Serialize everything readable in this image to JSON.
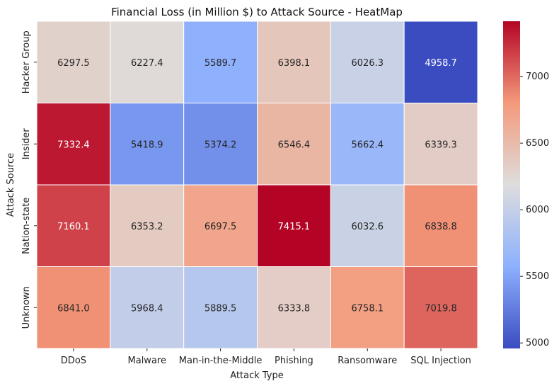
{
  "chart_data": {
    "type": "heatmap",
    "title": "Financial Loss (in Million $) to Attack Source - HeatMap",
    "xlabel": "Attack Type",
    "ylabel": "Attack Source",
    "x_categories": [
      "DDoS",
      "Malware",
      "Man-in-the-Middle",
      "Phishing",
      "Ransomware",
      "SQL Injection"
    ],
    "y_categories": [
      "Hacker Group",
      "Insider",
      "Nation-state",
      "Unknown"
    ],
    "values": [
      [
        6297.5,
        6227.4,
        5589.7,
        6398.1,
        6026.3,
        4958.7
      ],
      [
        7332.4,
        5418.9,
        5374.2,
        6546.4,
        5662.4,
        6339.3
      ],
      [
        7160.1,
        6353.2,
        6697.5,
        7415.1,
        6032.6,
        6838.8
      ],
      [
        6841.0,
        5968.4,
        5889.5,
        6333.8,
        6758.1,
        7019.8
      ]
    ],
    "value_format": "one decimal",
    "colormap": "coolwarm",
    "colorbar": {
      "range": [
        4958.7,
        7415.1
      ],
      "ticks": [
        5000,
        5500,
        6000,
        6500,
        7000
      ]
    }
  }
}
